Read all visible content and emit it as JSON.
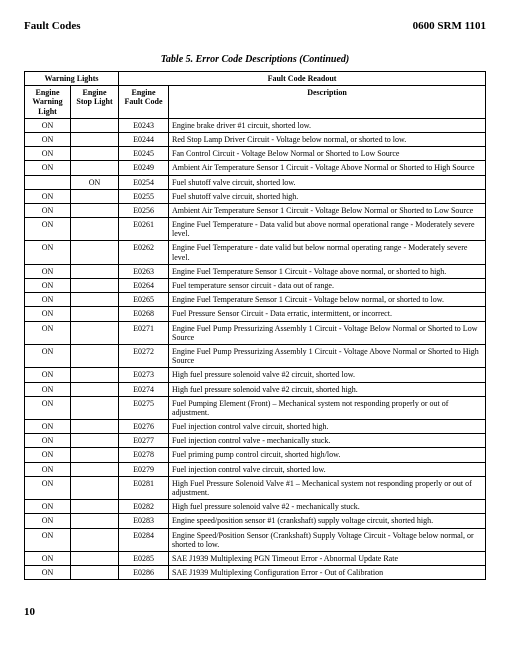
{
  "header": {
    "left": "Fault Codes",
    "right": "0600 SRM 1101"
  },
  "table_title": "Table 5. Error Code Descriptions (Continued)",
  "col_headers": {
    "group1": "Warning Lights",
    "group2": "Fault Code Readout",
    "c1": "Engine Warning Light",
    "c2": "Engine Stop Light",
    "c3": "Engine Fault Code",
    "c4": "Description"
  },
  "rows": [
    {
      "c1": "ON",
      "c2": "",
      "c3": "E0243",
      "c4": "Engine brake driver #1 circuit, shorted low."
    },
    {
      "c1": "ON",
      "c2": "",
      "c3": "E0244",
      "c4": "Red Stop Lamp Driver Circuit - Voltage below normal, or shorted to low."
    },
    {
      "c1": "ON",
      "c2": "",
      "c3": "E0245",
      "c4": "Fan Control Circuit - Voltage Below Normal or Shorted to Low Source"
    },
    {
      "c1": "ON",
      "c2": "",
      "c3": "E0249",
      "c4": "Ambient Air Temperature Sensor 1 Circuit - Voltage Above Normal or Shorted to High Source"
    },
    {
      "c1": "",
      "c2": "ON",
      "c3": "E0254",
      "c4": "Fuel shutoff valve circuit, shorted low."
    },
    {
      "c1": "ON",
      "c2": "",
      "c3": "E0255",
      "c4": "Fuel shutoff valve circuit, shorted high."
    },
    {
      "c1": "ON",
      "c2": "",
      "c3": "E0256",
      "c4": "Ambient Air Temperature Sensor 1 Circuit - Voltage Below Normal or Shorted to Low Source"
    },
    {
      "c1": "ON",
      "c2": "",
      "c3": "E0261",
      "c4": "Engine Fuel Temperature - Data valid but above normal operational range - Moderately severe level."
    },
    {
      "c1": "ON",
      "c2": "",
      "c3": "E0262",
      "c4": "Engine Fuel Temperature - date valid but below normal operating range - Moderately severe level."
    },
    {
      "c1": "ON",
      "c2": "",
      "c3": "E0263",
      "c4": "Engine Fuel Temperature Sensor 1 Circuit - Voltage above normal, or shorted to high."
    },
    {
      "c1": "ON",
      "c2": "",
      "c3": "E0264",
      "c4": "Fuel temperature sensor circuit - data out of range."
    },
    {
      "c1": "ON",
      "c2": "",
      "c3": "E0265",
      "c4": "Engine Fuel Temperature Sensor 1 Circuit - Voltage below normal, or shorted to low."
    },
    {
      "c1": "ON",
      "c2": "",
      "c3": "E0268",
      "c4": "Fuel Pressure Sensor Circuit - Data erratic, intermittent, or incorrect."
    },
    {
      "c1": "ON",
      "c2": "",
      "c3": "E0271",
      "c4": "Engine Fuel Pump Pressurizing Assembly 1 Circuit - Voltage Below Normal or Shorted to Low Source"
    },
    {
      "c1": "ON",
      "c2": "",
      "c3": "E0272",
      "c4": "Engine Fuel Pump Pressurizing Assembly 1 Circuit - Voltage Above Normal or Shorted to High Source"
    },
    {
      "c1": "ON",
      "c2": "",
      "c3": "E0273",
      "c4": "High fuel pressure solenoid valve #2 circuit, shorted low."
    },
    {
      "c1": "ON",
      "c2": "",
      "c3": "E0274",
      "c4": "High fuel pressure solenoid valve #2 circuit, shorted high."
    },
    {
      "c1": "ON",
      "c2": "",
      "c3": "E0275",
      "c4": "Fuel Pumping Element (Front) – Mechanical system not responding properly or out of adjustment."
    },
    {
      "c1": "ON",
      "c2": "",
      "c3": "E0276",
      "c4": "Fuel injection control valve circuit, shorted high."
    },
    {
      "c1": "ON",
      "c2": "",
      "c3": "E0277",
      "c4": "Fuel injection control valve - mechanically stuck."
    },
    {
      "c1": "ON",
      "c2": "",
      "c3": "E0278",
      "c4": "Fuel priming pump control circuit, shorted high/low."
    },
    {
      "c1": "ON",
      "c2": "",
      "c3": "E0279",
      "c4": "Fuel injection control valve circuit, shorted low."
    },
    {
      "c1": "ON",
      "c2": "",
      "c3": "E0281",
      "c4": "High Fuel Pressure Solenoid Valve #1 – Mechanical system not responding properly or out of adjustment."
    },
    {
      "c1": "ON",
      "c2": "",
      "c3": "E0282",
      "c4": "High fuel pressure solenoid valve #2 - mechanically stuck."
    },
    {
      "c1": "ON",
      "c2": "",
      "c3": "E0283",
      "c4": "Engine speed/position sensor #1 (crankshaft) supply voltage circuit, shorted high."
    },
    {
      "c1": "ON",
      "c2": "",
      "c3": "E0284",
      "c4": "Engine Speed/Position Sensor (Crankshaft) Supply Voltage Circuit - Voltage below normal, or shorted to low."
    },
    {
      "c1": "ON",
      "c2": "",
      "c3": "E0285",
      "c4": "SAE J1939 Multiplexing PGN Timeout Error - Abnormal Update Rate"
    },
    {
      "c1": "ON",
      "c2": "",
      "c3": "E0286",
      "c4": "SAE J1939 Multiplexing Configuration Error - Out of Calibration"
    }
  ],
  "page_number": "10"
}
